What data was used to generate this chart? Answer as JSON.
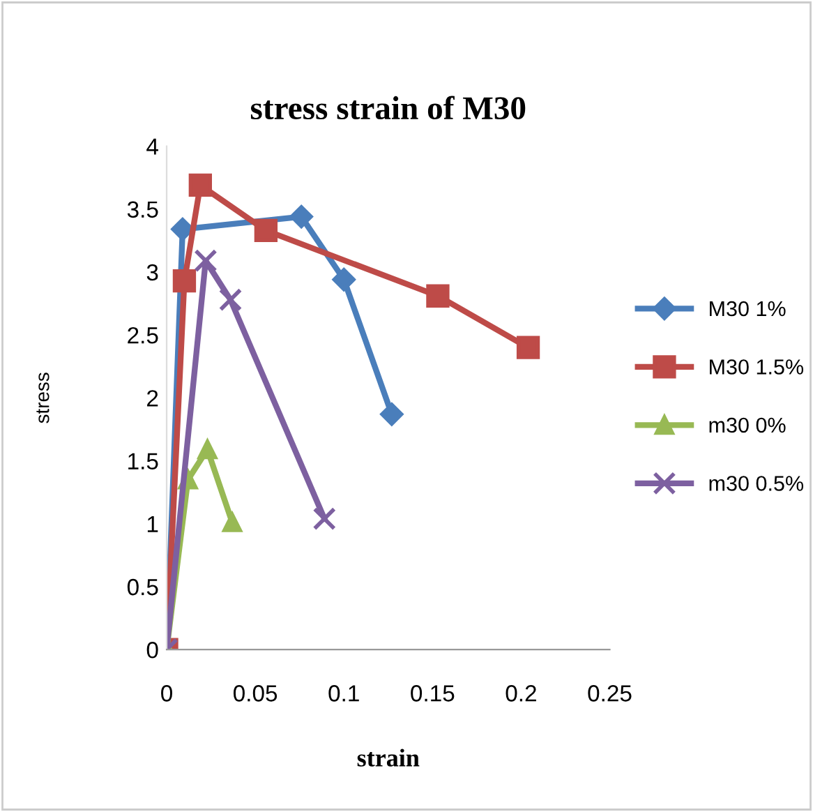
{
  "chart_data": {
    "type": "line",
    "title": "stress strain of M30",
    "xlabel": "strain",
    "ylabel": "stress",
    "xlim": [
      0,
      0.25
    ],
    "xticks": [
      0,
      0.05,
      0.1,
      0.15,
      0.2,
      0.25
    ],
    "ylim": [
      0,
      4
    ],
    "yticks": [
      0,
      0.5,
      1,
      1.5,
      2,
      2.5,
      3,
      3.5,
      4
    ],
    "grid": false,
    "legend": "right",
    "series": [
      {
        "name": "M30 1%",
        "color": "#4a7ebb",
        "marker": "diamond",
        "x": [
          0,
          0.009,
          0.076,
          0.1,
          0.127
        ],
        "values": [
          0,
          3.34,
          3.44,
          2.94,
          1.87
        ]
      },
      {
        "name": "M30 1.5%",
        "color": "#be4b48",
        "marker": "square",
        "x": [
          0,
          0.01,
          0.019,
          0.056,
          0.153,
          0.204
        ],
        "values": [
          0,
          2.93,
          3.69,
          3.33,
          2.81,
          2.4
        ]
      },
      {
        "name": "m30 0%",
        "color": "#98b954",
        "marker": "triangle",
        "x": [
          0,
          0.012,
          0.023,
          0.037
        ],
        "values": [
          0,
          1.35,
          1.59,
          1.01
        ]
      },
      {
        "name": "m30 0.5%",
        "color": "#7d60a0",
        "marker": "cross",
        "x": [
          0,
          0.022,
          0.036,
          0.089
        ],
        "values": [
          0,
          3.09,
          2.78,
          1.04
        ]
      }
    ]
  }
}
